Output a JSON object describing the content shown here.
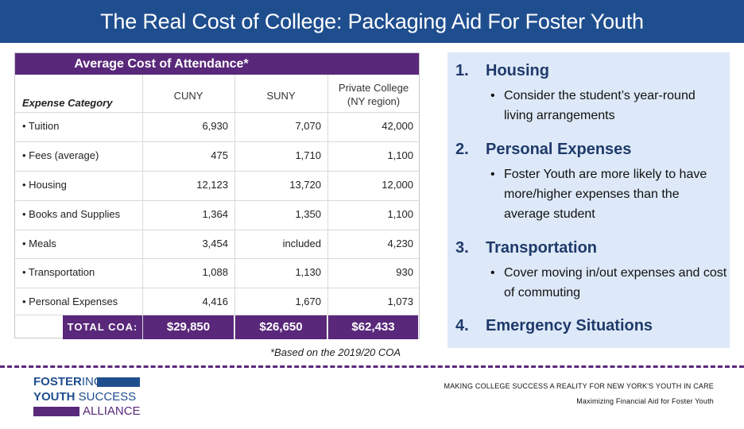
{
  "title": "The Real Cost of College: Packaging Aid For Foster Youth",
  "table": {
    "header": "Average Cost of Attendance*",
    "category_label": "Expense Category",
    "columns": [
      "CUNY",
      "SUNY",
      "Private College (NY region)"
    ],
    "rows": [
      {
        "label": "Tuition",
        "values": [
          "6,930",
          "7,070",
          "42,000"
        ]
      },
      {
        "label": "Fees (average)",
        "values": [
          "475",
          "1,710",
          "1,100"
        ]
      },
      {
        "label": "Housing",
        "values": [
          "12,123",
          "13,720",
          "12,000"
        ]
      },
      {
        "label": "Books and Supplies",
        "values": [
          "1,364",
          "1,350",
          "1,100"
        ]
      },
      {
        "label": "Meals",
        "values": [
          "3,454",
          "included",
          "4,230"
        ]
      },
      {
        "label": "Transportation",
        "values": [
          "1,088",
          "1,130",
          "930"
        ]
      },
      {
        "label": "Personal Expenses",
        "values": [
          "4,416",
          "1,670",
          "1,073"
        ]
      }
    ],
    "total_label": "TOTAL COA:",
    "totals": [
      "$29,850",
      "$26,650",
      "$62,433"
    ],
    "footnote": "*Based on the 2019/20 COA"
  },
  "panel": {
    "sections": [
      {
        "num": "1.",
        "heading": "Housing",
        "bullets": [
          "Consider the student’s year-round living arrangements"
        ]
      },
      {
        "num": "2.",
        "heading": "Personal Expenses",
        "bullets": [
          "Foster Youth are more likely to have more/higher expenses than the average student"
        ]
      },
      {
        "num": "3.",
        "heading": "Transportation",
        "bullets": [
          "Cover moving in/out expenses and cost of commuting"
        ]
      },
      {
        "num": "4.",
        "heading": "Emergency Situations",
        "bullets": []
      }
    ]
  },
  "logo": {
    "line1_bold": "FOSTER",
    "line1_rest": "ING",
    "line2_bold": "YOUTH",
    "line2_rest": " SUCCESS",
    "line3": "ALLIANCE"
  },
  "footer": {
    "tagline1": "MAKING COLLEGE SUCCESS A REALITY FOR NEW YORK'S YOUTH IN CARE",
    "tagline2": "Maximizing Financial Aid for Foster Youth"
  },
  "colors": {
    "title_bar": "#1f4e8f",
    "purple": "#59287a",
    "panel_bg": "#dde9f8",
    "navy_text": "#1f3a6b"
  }
}
